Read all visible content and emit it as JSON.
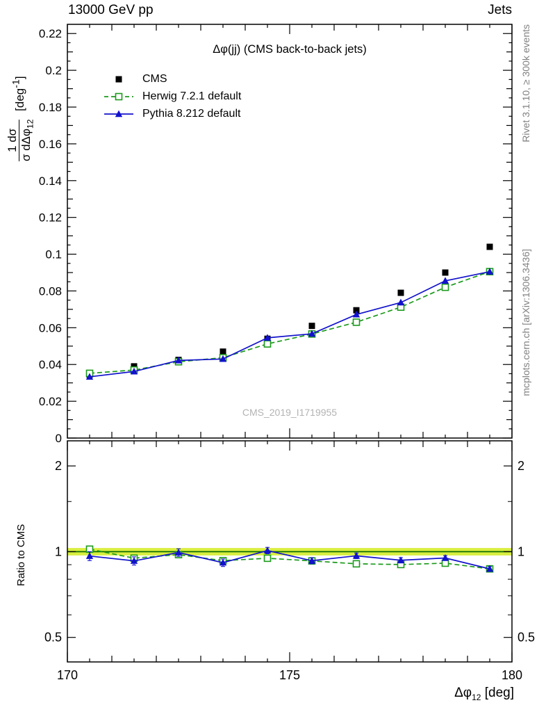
{
  "header": {
    "left": "13000 GeV pp",
    "right": "Jets"
  },
  "side_labels": {
    "top_right": "Rivet 3.1.10, ≥ 300k events",
    "bottom_right": "mcplots.cern.ch [arXiv:1306.3436]"
  },
  "watermark": "CMS_2019_I1719955",
  "axis_labels": {
    "y_frac_num": "1 dσ",
    "y_frac_den": "σ dΔφ",
    "y_frac_den_sub": "12",
    "y_units_pre": "[deg",
    "y_units_sup": "-1",
    "y_units_post": "]",
    "x_main": "Δφ",
    "x_sub": "12",
    "x_units": " [deg]",
    "ratio_y": "Ratio to CMS"
  },
  "chart_data": {
    "type": "line",
    "title": "Δφ(jj) (CMS back-to-back jets)",
    "xlabel": "Δφ_12 [deg]",
    "ylabel": "1/σ dσ/dΔφ_12 [deg^-1]",
    "ratio_ylabel": "Ratio to CMS",
    "xlim": [
      170,
      180
    ],
    "ylim": [
      0,
      0.225
    ],
    "ratio_ylim": [
      0.41,
      2.45
    ],
    "ratio_scale": "log",
    "x_major_ticks": [
      170,
      175,
      180
    ],
    "y_major_ticks": [
      0,
      0.02,
      0.04,
      0.06,
      0.08,
      0.1,
      0.12,
      0.14,
      0.16,
      0.18,
      0.2,
      0.22
    ],
    "ratio_major_ticks": [
      0.5,
      1,
      2
    ],
    "ratio_minor_ticks": [
      0.6,
      0.7,
      0.8,
      0.9,
      1.5
    ],
    "x": [
      170.5,
      171.5,
      172.5,
      173.5,
      174.5,
      175.5,
      176.5,
      177.5,
      178.5,
      179.5
    ],
    "series": [
      {
        "name": "CMS",
        "color": "#000000",
        "marker": "square-filled",
        "line": "none",
        "is_reference": true,
        "values": [
          0.0345,
          0.039,
          0.0425,
          0.047,
          0.054,
          0.061,
          0.0695,
          0.079,
          0.09,
          0.104
        ],
        "yerr": [
          0.0009,
          0.0009,
          0.0009,
          0.001,
          0.001,
          0.0011,
          0.0012,
          0.0013,
          0.0015,
          0.0017
        ]
      },
      {
        "name": "Herwig 7.2.1 default",
        "color": "#1a9a1a",
        "marker": "square-open",
        "line": "dashed",
        "is_reference": false,
        "values": [
          0.0352,
          0.037,
          0.0415,
          0.0437,
          0.0512,
          0.0566,
          0.063,
          0.0712,
          0.082,
          0.0905
        ],
        "yerr": [
          0.0006,
          0.0006,
          0.0006,
          0.0007,
          0.0007,
          0.0007,
          0.0008,
          0.0008,
          0.0009,
          0.001
        ]
      },
      {
        "name": "Pythia 8.212 default",
        "color": "#1212cc",
        "marker": "triangle-filled",
        "line": "solid",
        "is_reference": false,
        "values": [
          0.0333,
          0.0362,
          0.0422,
          0.043,
          0.0545,
          0.0567,
          0.0672,
          0.0737,
          0.0855,
          0.0905
        ],
        "yerr": [
          0.0012,
          0.0012,
          0.0013,
          0.0013,
          0.0014,
          0.0014,
          0.0015,
          0.0016,
          0.0017,
          0.0018
        ]
      }
    ],
    "ratio_band": {
      "lo": 0.97,
      "hi": 1.03,
      "color": "#d9ee3f",
      "line_color": "#006600"
    }
  }
}
